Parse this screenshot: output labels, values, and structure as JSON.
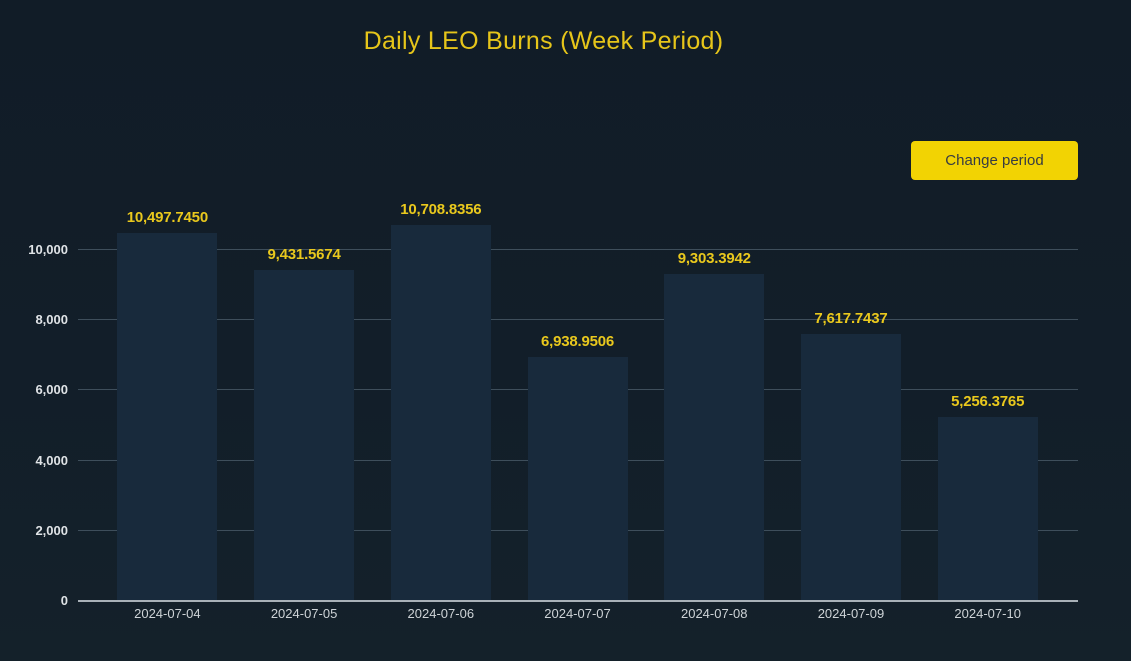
{
  "page": {
    "title": "Daily LEO Burns (Week Period)"
  },
  "controls": {
    "change_period_label": "Change period"
  },
  "colors": {
    "background_top": "#111c27",
    "background_bottom": "#14212a",
    "accent_yellow": "#e6c51a",
    "value_label_yellow": "#e9c81d",
    "button_yellow": "#f2d303",
    "button_text": "#373c42",
    "bar_fill": "#182a3c",
    "gridline": "#3e4e5b",
    "axis_line": "#a9b1b8",
    "y_tick_text": "#dfe3e6",
    "x_tick_text": "#ced3d7"
  },
  "chart_data": {
    "type": "bar",
    "title": "Daily LEO Burns (Week Period)",
    "xlabel": "",
    "ylabel": "",
    "grid": true,
    "legend": false,
    "ylim": [
      0,
      12000
    ],
    "categories": [
      "2024-07-04",
      "2024-07-05",
      "2024-07-06",
      "2024-07-07",
      "2024-07-08",
      "2024-07-09",
      "2024-07-10"
    ],
    "values": [
      10497.745,
      9431.5674,
      10708.8356,
      6938.9506,
      9303.3942,
      7617.7437,
      5256.3765
    ],
    "value_labels": [
      "10,497.7450",
      "9,431.5674",
      "10,708.8356",
      "6,938.9506",
      "9,303.3942",
      "7,617.7437",
      "5,256.3765"
    ],
    "y_ticks": {
      "values": [
        0,
        2000,
        4000,
        6000,
        8000,
        10000
      ],
      "labels": [
        "0",
        "2,000",
        "4,000",
        "6,000",
        "8,000",
        "10,000"
      ]
    }
  }
}
